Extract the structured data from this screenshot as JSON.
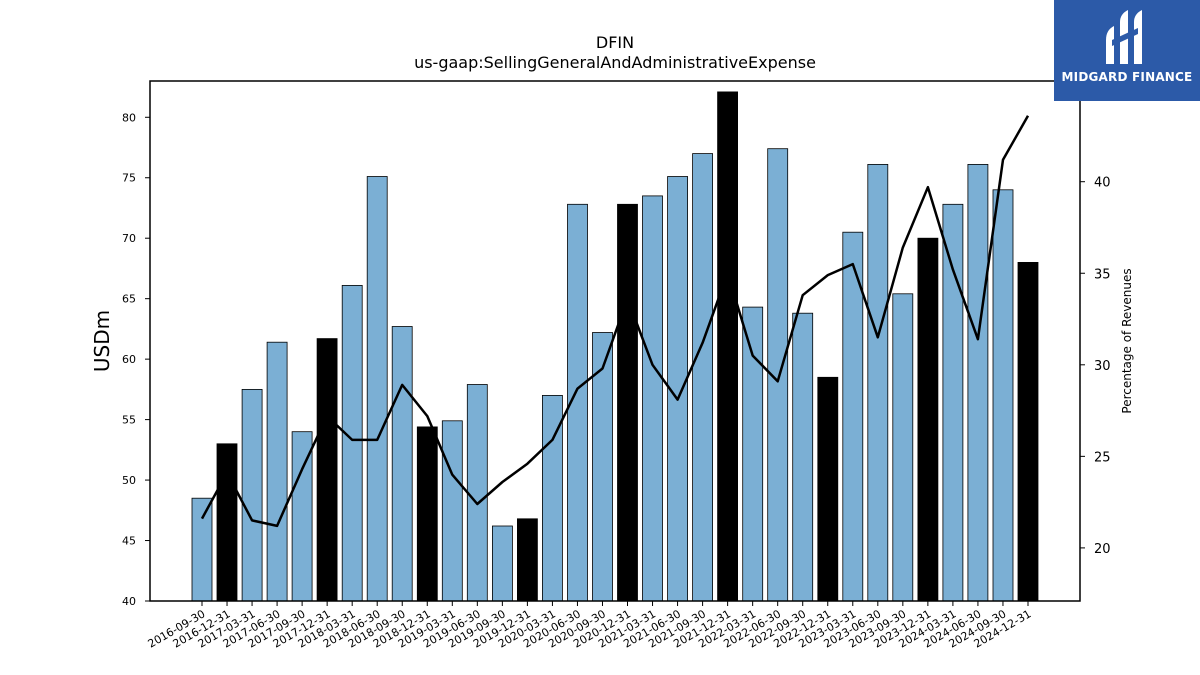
{
  "brand": {
    "name": "MIDGARD FINANCE",
    "bg_color": "#2c5aa8",
    "icon": "midgard-logo-icon"
  },
  "chart_data": {
    "type": "bar",
    "title": "DFIN",
    "subtitle": "us-gaap:SellingGeneralAndAdministrativeExpense",
    "ylabel": "USDm",
    "y2label": "Percentage of Revenues",
    "ylim": [
      40,
      83
    ],
    "y2lim": [
      17.1,
      45.5
    ],
    "yticks": [
      40,
      45,
      50,
      55,
      60,
      65,
      70,
      75,
      80
    ],
    "y2ticks": [
      20,
      25,
      30,
      35,
      40
    ],
    "bar_colors": {
      "quarter": "#7bafd4",
      "year_end": "#000000"
    },
    "line_color": "#000000",
    "categories": [
      "2016-09-30",
      "2016-12-31",
      "2017-03-31",
      "2017-06-30",
      "2017-09-30",
      "2017-12-31",
      "2018-03-31",
      "2018-06-30",
      "2018-09-30",
      "2018-12-31",
      "2019-03-31",
      "2019-06-30",
      "2019-09-30",
      "2019-12-31",
      "2020-03-31",
      "2020-06-30",
      "2020-09-30",
      "2020-12-31",
      "2021-03-31",
      "2021-06-30",
      "2021-09-30",
      "2021-12-31",
      "2022-03-31",
      "2022-06-30",
      "2022-09-30",
      "2022-12-31",
      "2023-03-31",
      "2023-06-30",
      "2023-09-30",
      "2023-12-31",
      "2024-03-31",
      "2024-06-30",
      "2024-09-30",
      "2024-12-31"
    ],
    "series": [
      {
        "type": "bar",
        "values": [
          48.5,
          53.0,
          57.5,
          61.4,
          54.0,
          61.7,
          66.1,
          75.1,
          62.7,
          54.4,
          54.9,
          57.9,
          46.2,
          46.8,
          57.0,
          72.8,
          62.2,
          72.8,
          73.5,
          75.1,
          77.0,
          82.1,
          64.3,
          77.4,
          63.8,
          58.5,
          70.5,
          76.1,
          65.4,
          70.0,
          72.8,
          76.1,
          74.0,
          68.0
        ]
      },
      {
        "type": "line",
        "axis": "secondary",
        "values": [
          21.6,
          24.1,
          21.5,
          21.2,
          24.3,
          27.2,
          25.9,
          25.9,
          28.9,
          27.2,
          24.0,
          22.4,
          23.6,
          24.6,
          25.9,
          28.7,
          29.8,
          33.6,
          30.0,
          28.1,
          31.2,
          35.0,
          30.5,
          29.1,
          33.8,
          34.9,
          35.5,
          31.5,
          36.4,
          39.7,
          35.2,
          31.4,
          41.2,
          43.6
        ]
      }
    ]
  }
}
